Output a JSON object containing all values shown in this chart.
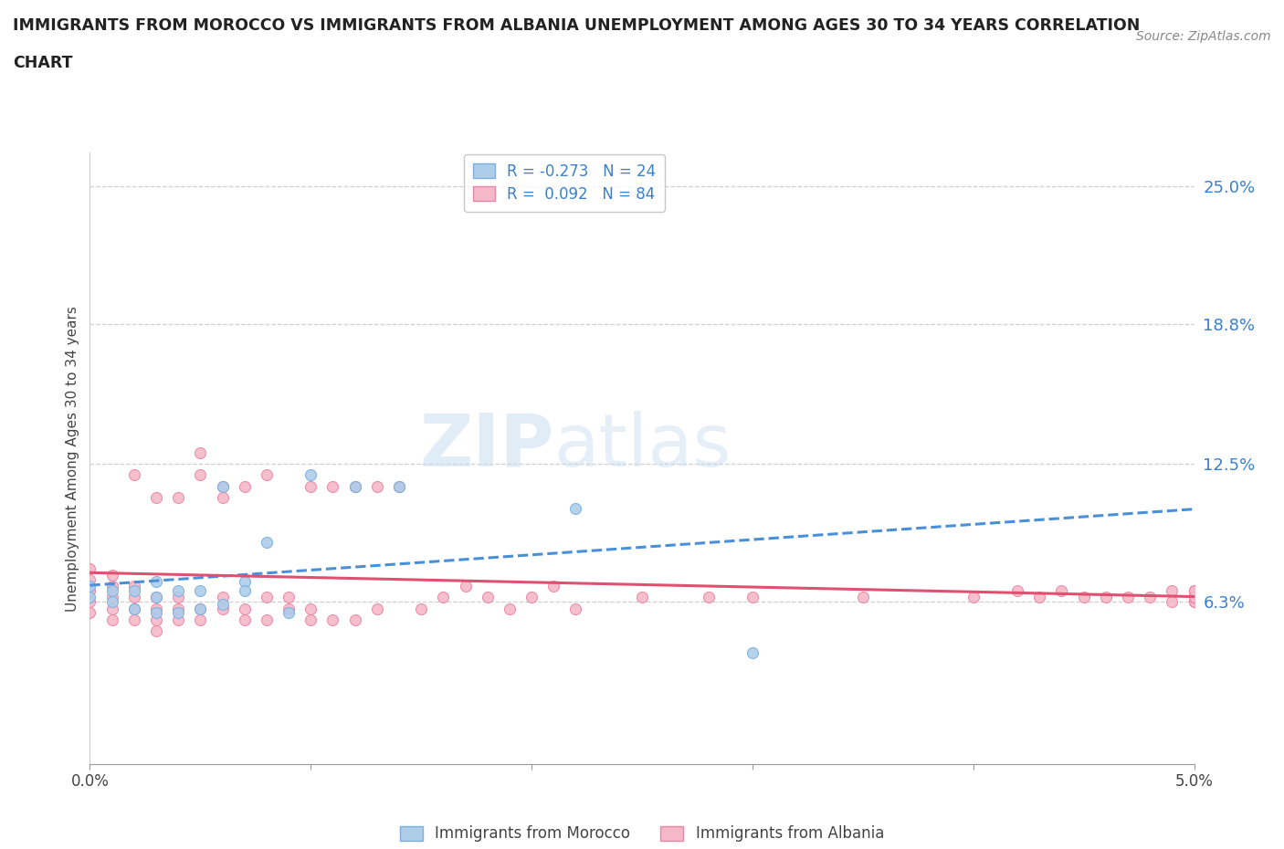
{
  "title_line1": "IMMIGRANTS FROM MOROCCO VS IMMIGRANTS FROM ALBANIA UNEMPLOYMENT AMONG AGES 30 TO 34 YEARS CORRELATION",
  "title_line2": "CHART",
  "source_text": "Source: ZipAtlas.com",
  "ylabel": "Unemployment Among Ages 30 to 34 years",
  "xlim": [
    0.0,
    0.05
  ],
  "ylim": [
    -0.01,
    0.265
  ],
  "ytick_vals": [
    0.063,
    0.125,
    0.188,
    0.25
  ],
  "ytick_labels": [
    "6.3%",
    "12.5%",
    "18.8%",
    "25.0%"
  ],
  "watermark_part1": "ZIP",
  "watermark_part2": "atlas",
  "morocco_color": "#aecde8",
  "albania_color": "#f5b8c8",
  "morocco_edge": "#7aafe0",
  "albania_edge": "#e888a8",
  "trend_morocco_color": "#4a90d9",
  "trend_albania_color": "#e05070",
  "R_morocco": -0.273,
  "N_morocco": 24,
  "R_albania": 0.092,
  "N_albania": 84,
  "legend_morocco": "Immigrants from Morocco",
  "legend_albania": "Immigrants from Albania",
  "grid_color": "#d0d0d0",
  "morocco_x": [
    0.0,
    0.0,
    0.001,
    0.001,
    0.002,
    0.002,
    0.003,
    0.003,
    0.003,
    0.004,
    0.004,
    0.005,
    0.005,
    0.006,
    0.006,
    0.007,
    0.007,
    0.008,
    0.009,
    0.01,
    0.012,
    0.014,
    0.022,
    0.03
  ],
  "morocco_y": [
    0.065,
    0.07,
    0.063,
    0.068,
    0.06,
    0.068,
    0.058,
    0.065,
    0.072,
    0.058,
    0.068,
    0.06,
    0.068,
    0.062,
    0.115,
    0.072,
    0.068,
    0.09,
    0.058,
    0.12,
    0.115,
    0.115,
    0.105,
    0.04
  ],
  "albania_x": [
    0.0,
    0.0,
    0.0,
    0.0,
    0.0,
    0.001,
    0.001,
    0.001,
    0.001,
    0.001,
    0.002,
    0.002,
    0.002,
    0.002,
    0.002,
    0.003,
    0.003,
    0.003,
    0.003,
    0.003,
    0.004,
    0.004,
    0.004,
    0.004,
    0.005,
    0.005,
    0.005,
    0.005,
    0.006,
    0.006,
    0.006,
    0.006,
    0.007,
    0.007,
    0.007,
    0.008,
    0.008,
    0.008,
    0.009,
    0.009,
    0.01,
    0.01,
    0.01,
    0.011,
    0.011,
    0.012,
    0.012,
    0.013,
    0.013,
    0.014,
    0.015,
    0.016,
    0.017,
    0.018,
    0.019,
    0.02,
    0.021,
    0.022,
    0.025,
    0.028,
    0.03,
    0.035,
    0.04,
    0.042,
    0.043,
    0.044,
    0.045,
    0.046,
    0.047,
    0.048,
    0.049,
    0.049,
    0.05,
    0.05,
    0.05,
    0.05,
    0.05,
    0.05,
    0.05,
    0.05,
    0.05,
    0.05,
    0.05,
    0.05
  ],
  "albania_y": [
    0.058,
    0.063,
    0.068,
    0.073,
    0.078,
    0.055,
    0.06,
    0.065,
    0.07,
    0.075,
    0.055,
    0.06,
    0.065,
    0.07,
    0.12,
    0.05,
    0.055,
    0.06,
    0.065,
    0.11,
    0.055,
    0.06,
    0.065,
    0.11,
    0.055,
    0.06,
    0.12,
    0.13,
    0.06,
    0.065,
    0.11,
    0.115,
    0.055,
    0.06,
    0.115,
    0.055,
    0.065,
    0.12,
    0.06,
    0.065,
    0.055,
    0.06,
    0.115,
    0.055,
    0.115,
    0.055,
    0.115,
    0.06,
    0.115,
    0.115,
    0.06,
    0.065,
    0.07,
    0.065,
    0.06,
    0.065,
    0.07,
    0.06,
    0.065,
    0.065,
    0.065,
    0.065,
    0.065,
    0.068,
    0.065,
    0.068,
    0.065,
    0.065,
    0.065,
    0.065,
    0.063,
    0.068,
    0.065,
    0.068,
    0.063,
    0.065,
    0.068,
    0.063,
    0.065,
    0.065,
    0.065,
    0.065,
    0.065,
    0.068
  ]
}
